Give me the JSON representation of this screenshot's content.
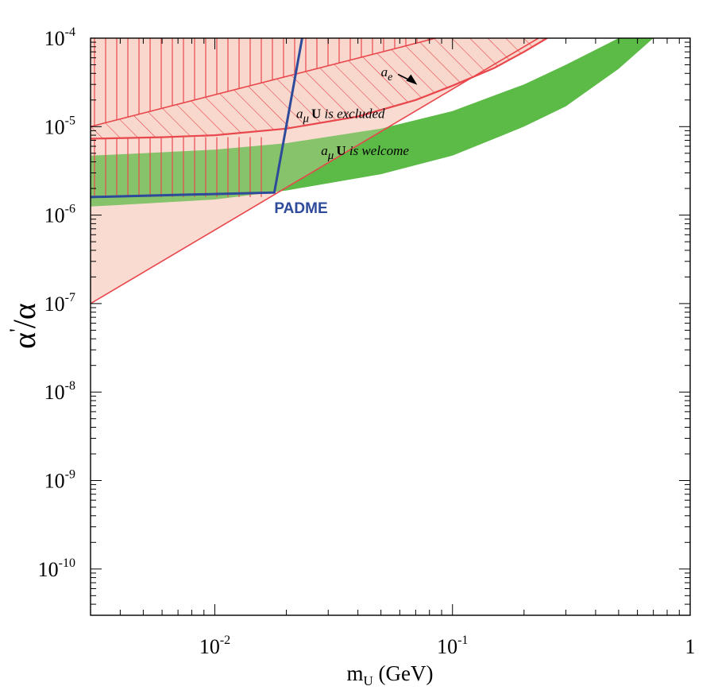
{
  "chart_data": {
    "type": "line",
    "title": "",
    "xlabel": {
      "main": "m",
      "sub": "U",
      "unit": " (GeV)"
    },
    "ylabel": {
      "base": "α",
      "prime": "'",
      "slash": "/α"
    },
    "xscale": "log",
    "yscale": "log",
    "xlim": [
      0.003,
      1
    ],
    "ylim": [
      3e-11,
      0.0001
    ],
    "x_ticks": [
      {
        "value": 0.01,
        "base": "10",
        "exp": "-2"
      },
      {
        "value": 0.1,
        "base": "10",
        "exp": "-1"
      },
      {
        "value": 1,
        "base": "1",
        "exp": ""
      }
    ],
    "y_ticks": [
      {
        "value": 0.0001,
        "base": "10",
        "exp": "-4"
      },
      {
        "value": 1e-05,
        "base": "10",
        "exp": "-5"
      },
      {
        "value": 1e-06,
        "base": "10",
        "exp": "-6"
      },
      {
        "value": 1e-07,
        "base": "10",
        "exp": "-7"
      },
      {
        "value": 1e-08,
        "base": "10",
        "exp": "-8"
      },
      {
        "value": 1e-09,
        "base": "10",
        "exp": "-9"
      },
      {
        "value": 1e-10,
        "base": "10",
        "exp": "-10"
      }
    ],
    "grid": false,
    "legend": "none",
    "series": [
      {
        "role": "a_e excluded region boundary",
        "color": "#e8474c",
        "fill": "#f9d7cc",
        "x": [
          0.003,
          0.006,
          0.01,
          0.02,
          0.04,
          0.07,
          0.1,
          0.15,
          0.2,
          0.25
        ],
        "y": [
          7.3e-06,
          7.6e-06,
          8e-06,
          9.5e-06,
          1.3e-05,
          2e-05,
          2.9e-05,
          4.6e-05,
          7e-05,
          0.0001
        ]
      },
      {
        "role": "a_mu upper exclusion line",
        "color": "#e8474c",
        "x": [
          0.003,
          0.085
        ],
        "y": [
          1e-05,
          0.0001
        ]
      },
      {
        "role": "a_mu lower exclusion line",
        "color": "#e8474c",
        "x": [
          0.003,
          0.23
        ],
        "y": [
          1e-07,
          0.0001
        ]
      },
      {
        "role": "a_mu welcome band",
        "color": "#5bbb46",
        "x": [
          0.003,
          0.005,
          0.01,
          0.02,
          0.05,
          0.1,
          0.2,
          0.3,
          0.5,
          0.7
        ],
        "y_upper": [
          4.7e-06,
          5e-06,
          5.5e-06,
          6.5e-06,
          9.5e-06,
          1.5e-05,
          3e-05,
          5e-05,
          0.0001,
          0.0001
        ],
        "y_lower": [
          1.25e-06,
          1.35e-06,
          1.5e-06,
          1.9e-06,
          2.9e-06,
          4.7e-06,
          1e-05,
          1.7e-05,
          4.5e-05,
          0.0001
        ]
      },
      {
        "name": "PADME",
        "color": "#2e4a9a",
        "x": [
          0.003,
          0.0178,
          0.0233
        ],
        "y": [
          1.6e-06,
          1.8e-06,
          0.0001
        ]
      }
    ],
    "annotations": [
      {
        "id": "ae",
        "main": "a",
        "sub": "e",
        "x": 0.05,
        "y": 3.7e-05
      },
      {
        "id": "excluded",
        "main": "a",
        "sub": "μ",
        "bold": "U",
        "rest": " is excluded",
        "x": 0.022,
        "y": 1.25e-05
      },
      {
        "id": "welcome",
        "main": "a",
        "sub": "μ",
        "bold": "U",
        "rest": "  is welcome",
        "x": 0.028,
        "y": 4.8e-06
      }
    ],
    "padme_label": {
      "text": "PADME",
      "x": 0.0178,
      "y": 1.05e-06
    }
  }
}
